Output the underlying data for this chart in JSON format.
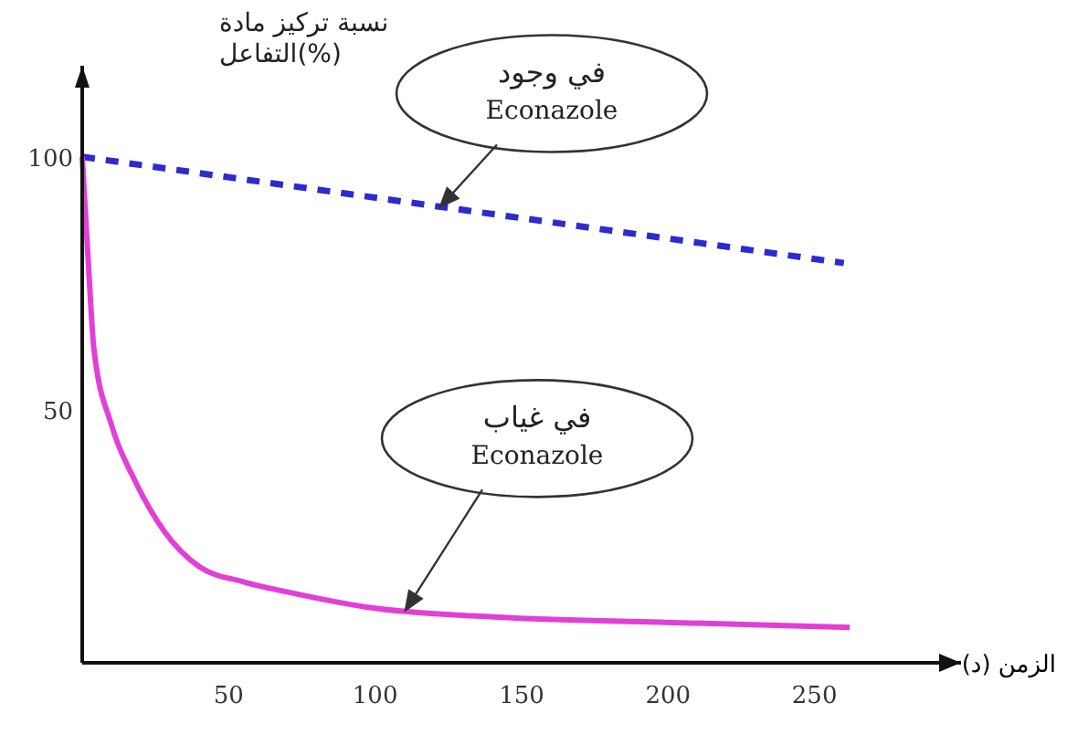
{
  "chart_data": {
    "type": "line",
    "ylabel": "نسبة تركيز مادة\nالتفاعل(%)",
    "xlabel": "الزمن (د)",
    "xlim": [
      0,
      300
    ],
    "xticks": [
      50,
      100,
      150,
      200,
      250
    ],
    "ylim": [
      0,
      118
    ],
    "yticks": [
      50,
      100
    ],
    "series": [
      {
        "color": "#2b2bd0",
        "line_style": "dashed",
        "x": [
          0,
          260
        ],
        "values": [
          100,
          79
        ]
      },
      {
        "color": "#e23fd6",
        "line_style": "solid",
        "x": [
          0,
          2,
          4,
          10,
          18,
          28,
          40,
          55,
          70,
          97,
          142,
          199,
          262
        ],
        "values": [
          100,
          80,
          62,
          47,
          36,
          26,
          19,
          16,
          14,
          11,
          9,
          8,
          7
        ]
      }
    ],
    "annotations": [
      "في وجود\nEconazole",
      "في غياب\nEconazole"
    ]
  }
}
